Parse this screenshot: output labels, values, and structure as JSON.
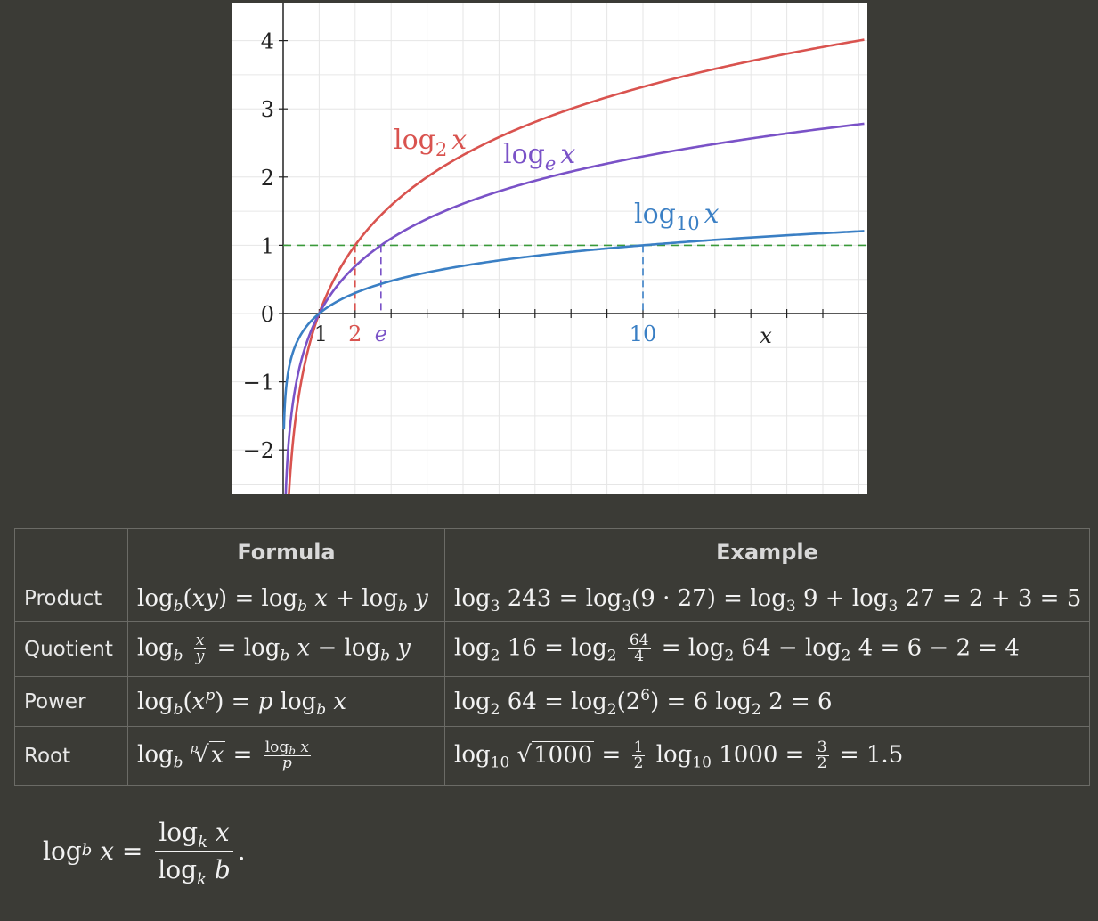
{
  "chart_data": {
    "type": "line",
    "xlim": [
      0,
      16
    ],
    "ylim": [
      -2.6,
      4.3
    ],
    "y_ticks": [
      -2,
      -1,
      0,
      1,
      2,
      3,
      4
    ],
    "y_tick_labels": [
      "−2",
      "−1",
      "0",
      "1",
      "2",
      "3",
      "4"
    ],
    "x_ticks": [
      1,
      2,
      3,
      4,
      5,
      6,
      7,
      8,
      9,
      10,
      11,
      12,
      13,
      14,
      15
    ],
    "x_labels": [
      {
        "x": 1,
        "text": "1",
        "color": "#222222"
      },
      {
        "x": 2,
        "text": "2",
        "color": "#d9534f"
      },
      {
        "x": 2.718,
        "text": "e",
        "color": "#7a52c7"
      },
      {
        "x": 10,
        "text": "10",
        "color": "#3a7fc4"
      }
    ],
    "xlabel": "x",
    "grid": true,
    "reference_line": {
      "y": 1,
      "color": "#3a9a3a"
    },
    "series": [
      {
        "name": "log2 x",
        "base": 2,
        "color": "#d9534f",
        "label_base": "2",
        "marker_x": 2
      },
      {
        "name": "loge x",
        "base": 2.718281828,
        "color": "#7a52c7",
        "label_base": "e",
        "marker_x": 2.718
      },
      {
        "name": "log10 x",
        "base": 10,
        "color": "#3a7fc4",
        "label_base": "10",
        "marker_x": 10
      }
    ],
    "label_text": "log",
    "label_var": "x"
  },
  "table": {
    "headers": [
      "",
      "Formula",
      "Example"
    ],
    "rows": [
      {
        "name": "Product"
      },
      {
        "name": "Quotient"
      },
      {
        "name": "Power"
      },
      {
        "name": "Root"
      }
    ]
  },
  "math": {
    "log": "log",
    "b": "b",
    "k": "k",
    "x": "x",
    "y": "y",
    "p": "p",
    "xy": "xy",
    "eq": "=",
    "plus": "+",
    "minus": "−",
    "dot": "·",
    "n2": "2",
    "n3": "3",
    "n4": "4",
    "n5": "5",
    "n6": "6",
    "n10": "10",
    "n16": "16",
    "n27": "27",
    "n64": "64",
    "n9": "9",
    "n243": "243",
    "n1000": "1000",
    "n1": "1",
    "n1_5": "1.5",
    "period": "."
  }
}
